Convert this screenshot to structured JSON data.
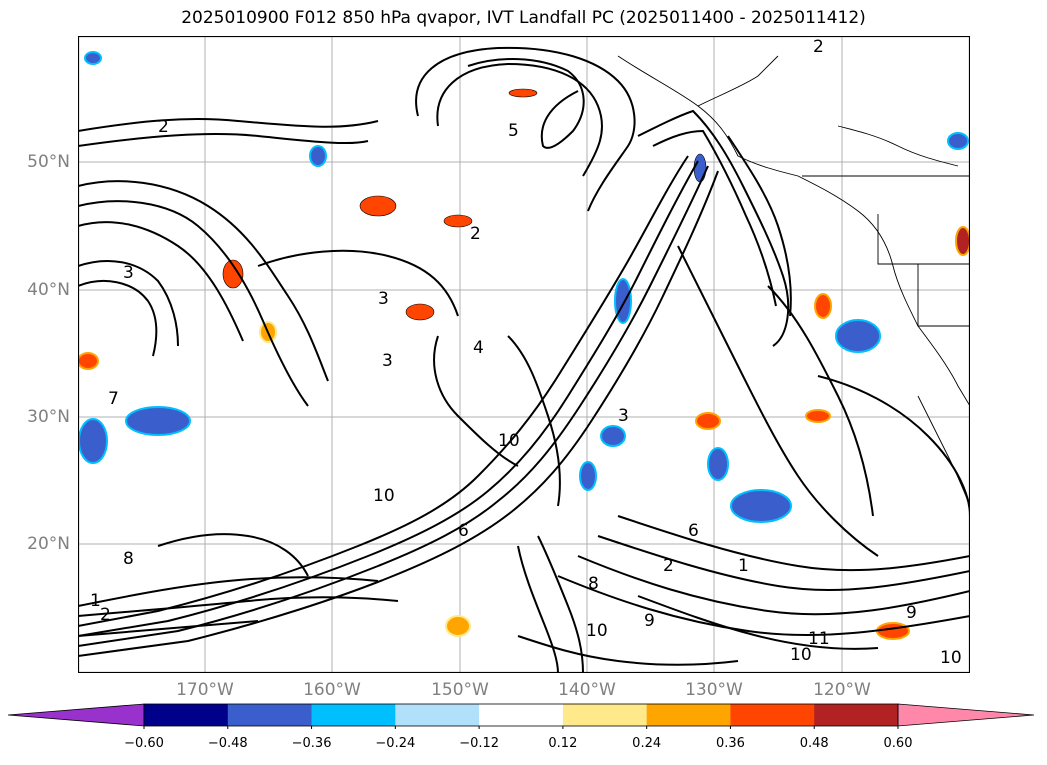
{
  "title": "2025010900 F012 850 hPa qvapor, IVT Landfall PC (2025011400 - 2025011412)",
  "map": {
    "lat_labels": [
      "50°N",
      "40°N",
      "30°N",
      "20°N"
    ],
    "lon_labels": [
      "170°W",
      "160°W",
      "150°W",
      "140°W",
      "130°W",
      "120°W"
    ],
    "contour_labels": [
      "2",
      "5",
      "3",
      "2",
      "3",
      "2",
      "6",
      "4",
      "10",
      "10",
      "3",
      "8",
      "6",
      "10",
      "2",
      "1",
      "10",
      "9",
      "9",
      "11",
      "10",
      "8",
      "7",
      "3",
      "2",
      "1"
    ]
  },
  "colorbar": {
    "tick_labels": [
      "−0.60",
      "−0.48",
      "−0.36",
      "−0.24",
      "−0.12",
      "0.12",
      "0.24",
      "0.36",
      "0.48",
      "0.60"
    ],
    "colors": [
      "#9932cc",
      "#00008b",
      "#3a5fcd",
      "#00bfff",
      "#b0e0fa",
      "#ffffff",
      "#ffe98a",
      "#ffa500",
      "#ff4500",
      "#b22222",
      "#ff88aa"
    ]
  }
}
